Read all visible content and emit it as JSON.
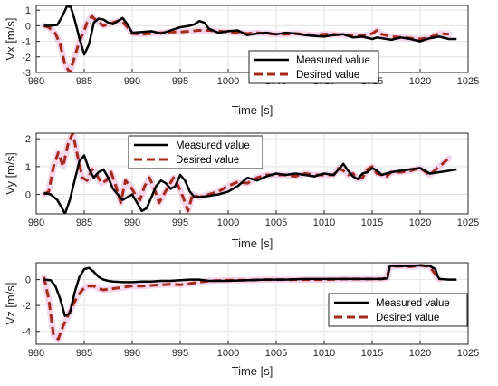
{
  "chart_data": [
    {
      "type": "line",
      "xlabel": "Time [s]",
      "ylabel": "Vx [m/s]",
      "xlim": [
        980,
        1025
      ],
      "ylim": [
        -3,
        1.3
      ],
      "xticks": [
        980,
        985,
        990,
        995,
        1000,
        1005,
        1010,
        1015,
        1020,
        1025
      ],
      "yticks": [
        -3,
        -2,
        -1,
        0,
        1
      ],
      "grid": true,
      "legend_position": "center-right",
      "series": [
        {
          "name": "Measured value",
          "color": "#000000",
          "style": "solid",
          "x": [
            980.8,
            981.5,
            982.2,
            982.8,
            983.2,
            983.6,
            984.0,
            984.5,
            985.0,
            985.5,
            986.0,
            986.5,
            987.0,
            987.5,
            988.0,
            988.5,
            989.0,
            989.5,
            990.0,
            991.0,
            992.0,
            993.0,
            994.0,
            995.0,
            996.0,
            996.5,
            997.0,
            997.5,
            998.0,
            999.0,
            1000.0,
            1001.0,
            1002.0,
            1003.0,
            1004.0,
            1005.0,
            1006.0,
            1007.0,
            1008.0,
            1009.0,
            1010.0,
            1011.0,
            1012.0,
            1013.0,
            1014.0,
            1015.0,
            1015.5,
            1016.0,
            1017.0,
            1018.0,
            1019.0,
            1020.0,
            1021.0,
            1022.0,
            1023.0,
            1023.8
          ],
          "y": [
            0.0,
            0.0,
            0.05,
            0.7,
            1.25,
            1.2,
            0.4,
            -0.8,
            -1.85,
            -1.2,
            0.2,
            0.45,
            0.4,
            0.2,
            0.1,
            0.3,
            0.5,
            0.1,
            -0.45,
            -0.4,
            -0.35,
            -0.5,
            -0.3,
            -0.1,
            0.0,
            0.1,
            0.3,
            0.2,
            -0.2,
            -0.45,
            -0.35,
            -0.3,
            -0.6,
            -0.5,
            -0.45,
            -0.55,
            -0.45,
            -0.5,
            -0.6,
            -0.65,
            -0.7,
            -0.6,
            -0.55,
            -0.75,
            -0.7,
            -0.85,
            -0.75,
            -0.8,
            -0.9,
            -0.75,
            -0.85,
            -1.0,
            -0.8,
            -0.7,
            -0.85,
            -0.85
          ]
        },
        {
          "name": "Desired value",
          "color": "#a52a1a",
          "style": "dashed",
          "x": [
            980.8,
            981.3,
            982.0,
            982.5,
            983.0,
            983.5,
            984.0,
            984.5,
            985.0,
            985.3,
            985.8,
            986.3,
            987.0,
            987.5,
            988.0,
            988.5,
            989.0,
            989.5,
            990.0,
            991.0,
            992.0,
            993.0,
            994.0,
            995.0,
            996.0,
            997.0,
            998.0,
            999.0,
            1000.0,
            1001.0,
            1002.0,
            1003.0,
            1004.0,
            1005.0,
            1006.0,
            1007.0,
            1008.0,
            1009.0,
            1010.0,
            1011.0,
            1012.0,
            1013.0,
            1014.0,
            1015.0,
            1015.5,
            1016.0,
            1017.0,
            1018.0,
            1019.0,
            1020.0,
            1021.0,
            1022.0,
            1023.0
          ],
          "y": [
            0.0,
            -0.1,
            -0.5,
            -1.2,
            -2.5,
            -3.0,
            -2.0,
            -1.0,
            -0.3,
            0.2,
            0.6,
            0.3,
            0.0,
            0.1,
            0.2,
            0.3,
            0.25,
            -0.1,
            -0.5,
            -0.55,
            -0.5,
            -0.45,
            -0.4,
            -0.4,
            -0.35,
            -0.3,
            -0.3,
            -0.35,
            -0.4,
            -0.45,
            -0.5,
            -0.45,
            -0.5,
            -0.55,
            -0.55,
            -0.5,
            -0.55,
            -0.6,
            -0.55,
            -0.55,
            -0.6,
            -0.6,
            -0.65,
            -0.5,
            -0.3,
            -0.55,
            -0.7,
            -0.75,
            -0.8,
            -0.85,
            -0.75,
            -0.5,
            -0.55
          ]
        }
      ]
    },
    {
      "type": "line",
      "xlabel": "Time [s]",
      "ylabel": "Vy [m/s]",
      "xlim": [
        980,
        1025
      ],
      "ylim": [
        -0.7,
        2.2
      ],
      "xticks": [
        980,
        985,
        990,
        995,
        1000,
        1005,
        1010,
        1015,
        1020,
        1025
      ],
      "yticks": [
        0,
        1,
        2
      ],
      "grid": true,
      "legend_position": "top-left",
      "series": [
        {
          "name": "Measured value",
          "color": "#000000",
          "style": "solid",
          "x": [
            980.8,
            981.5,
            982.2,
            982.7,
            983.0,
            983.5,
            984.0,
            984.5,
            985.0,
            985.5,
            986.0,
            986.5,
            987.0,
            987.5,
            988.0,
            988.5,
            989.0,
            989.5,
            990.0,
            990.5,
            991.0,
            991.5,
            992.0,
            992.5,
            993.0,
            993.5,
            994.0,
            994.5,
            995.0,
            995.5,
            996.0,
            996.5,
            997.0,
            998.0,
            999.0,
            1000.0,
            1001.0,
            1002.0,
            1003.0,
            1004.0,
            1005.0,
            1006.0,
            1007.0,
            1008.0,
            1009.0,
            1010.0,
            1011.0,
            1011.5,
            1012.0,
            1012.5,
            1013.0,
            1013.5,
            1014.0,
            1014.5,
            1015.0,
            1015.5,
            1016.0,
            1017.0,
            1018.0,
            1019.0,
            1020.0,
            1021.0,
            1022.0,
            1023.0,
            1023.8
          ],
          "y": [
            0.05,
            0.0,
            -0.2,
            -0.5,
            -0.7,
            -0.2,
            0.5,
            1.2,
            1.4,
            0.9,
            0.6,
            0.8,
            0.9,
            0.6,
            0.2,
            0.0,
            -0.2,
            -0.1,
            0.0,
            -0.3,
            -0.6,
            -0.5,
            -0.1,
            0.3,
            0.5,
            0.4,
            0.2,
            0.3,
            0.7,
            0.5,
            0.1,
            -0.1,
            -0.1,
            -0.05,
            0.0,
            0.1,
            0.3,
            0.6,
            0.5,
            0.65,
            0.75,
            0.7,
            0.75,
            0.7,
            0.65,
            0.75,
            0.7,
            0.9,
            1.1,
            0.85,
            0.65,
            0.55,
            0.75,
            0.8,
            0.95,
            0.85,
            0.7,
            0.8,
            0.85,
            0.9,
            0.95,
            0.75,
            0.8,
            0.85,
            0.9
          ]
        },
        {
          "name": "Desired value",
          "color": "#a52a1a",
          "style": "dashed",
          "x": [
            980.8,
            981.3,
            981.8,
            982.3,
            982.8,
            983.3,
            983.8,
            984.3,
            984.8,
            985.3,
            985.8,
            986.3,
            986.8,
            987.3,
            987.8,
            988.3,
            988.8,
            989.3,
            989.8,
            990.3,
            990.8,
            991.3,
            991.8,
            992.3,
            992.8,
            993.3,
            993.8,
            994.3,
            994.8,
            995.3,
            995.8,
            996.3,
            997.0,
            998.0,
            999.0,
            1000.0,
            1001.0,
            1002.0,
            1003.0,
            1004.0,
            1005.0,
            1006.0,
            1007.0,
            1008.0,
            1009.0,
            1010.0,
            1011.0,
            1011.5,
            1012.0,
            1012.5,
            1013.0,
            1013.5,
            1014.0,
            1014.5,
            1015.0,
            1015.5,
            1016.0,
            1016.5,
            1017.0,
            1018.0,
            1019.0,
            1020.0,
            1021.0,
            1022.0,
            1023.0
          ],
          "y": [
            0.0,
            0.1,
            1.0,
            1.5,
            1.0,
            1.8,
            2.2,
            1.4,
            0.6,
            0.5,
            0.9,
            0.7,
            0.4,
            0.5,
            0.8,
            0.3,
            -0.3,
            0.5,
            0.3,
            0.0,
            -0.2,
            0.3,
            0.6,
            0.2,
            -0.3,
            0.0,
            0.3,
            0.6,
            0.3,
            -0.1,
            -0.6,
            0.0,
            -0.1,
            0.0,
            0.1,
            0.3,
            0.45,
            0.4,
            0.6,
            0.7,
            0.7,
            0.7,
            0.65,
            0.75,
            0.7,
            0.7,
            0.7,
            0.95,
            0.85,
            0.7,
            0.75,
            0.55,
            0.6,
            0.9,
            1.0,
            0.75,
            0.7,
            0.65,
            0.8,
            0.8,
            0.85,
            0.95,
            0.7,
            1.0,
            1.3
          ]
        }
      ]
    },
    {
      "type": "line",
      "xlabel": "Time [s]",
      "ylabel": "Vz [m/s]",
      "xlim": [
        980,
        1025
      ],
      "ylim": [
        -5,
        1.3
      ],
      "xticks": [
        980,
        985,
        990,
        995,
        1000,
        1005,
        1010,
        1015,
        1020,
        1025
      ],
      "yticks": [
        -4,
        -2,
        0
      ],
      "grid": true,
      "legend_position": "bottom-right",
      "series": [
        {
          "name": "Measured value",
          "color": "#000000",
          "style": "solid",
          "x": [
            980.8,
            981.5,
            982.0,
            982.5,
            983.0,
            983.5,
            984.0,
            984.5,
            985.0,
            985.5,
            986.0,
            986.5,
            987.0,
            987.5,
            988.0,
            989.0,
            990.0,
            991.0,
            992.0,
            993.0,
            994.0,
            995.0,
            996.0,
            997.0,
            998.0,
            999.0,
            1000.0,
            1002.0,
            1004.0,
            1006.0,
            1008.0,
            1010.0,
            1012.0,
            1014.0,
            1016.0,
            1016.6,
            1016.8,
            1017.0,
            1018.0,
            1019.0,
            1020.0,
            1021.0,
            1021.6,
            1021.8,
            1022.0,
            1023.0,
            1023.8
          ],
          "y": [
            0.0,
            -0.05,
            -0.5,
            -1.5,
            -2.8,
            -2.6,
            -1.0,
            0.2,
            0.8,
            0.9,
            0.6,
            0.2,
            0.0,
            -0.1,
            -0.15,
            -0.2,
            -0.2,
            -0.15,
            -0.15,
            -0.1,
            -0.1,
            -0.05,
            0.0,
            0.0,
            -0.1,
            -0.1,
            -0.1,
            -0.05,
            0.0,
            0.0,
            0.05,
            0.05,
            0.05,
            0.05,
            0.05,
            0.1,
            1.0,
            1.05,
            1.05,
            1.05,
            1.1,
            1.05,
            0.8,
            0.3,
            0.05,
            0.0,
            0.0
          ]
        },
        {
          "name": "Desired value",
          "color": "#a52a1a",
          "style": "dashed",
          "x": [
            980.8,
            981.3,
            981.8,
            982.3,
            982.8,
            983.3,
            983.8,
            984.3,
            984.8,
            985.3,
            986.0,
            986.5,
            987.0,
            988.0,
            989.0,
            990.0,
            991.0,
            992.0,
            993.0,
            994.0,
            995.0,
            996.0,
            997.0,
            998.0,
            1000.0,
            1002.0,
            1004.0,
            1006.0,
            1008.0,
            1010.0,
            1012.0,
            1014.0,
            1016.0,
            1016.5,
            1016.8,
            1017.0,
            1018.0,
            1019.0,
            1020.0,
            1021.0,
            1021.5,
            1022.0
          ],
          "y": [
            0.2,
            -1.5,
            -4.3,
            -4.6,
            -3.6,
            -2.8,
            -2.0,
            -1.3,
            -0.8,
            -0.5,
            -0.5,
            -0.7,
            -0.8,
            -0.7,
            -0.6,
            -0.5,
            -0.5,
            -0.45,
            -0.4,
            -0.35,
            -0.4,
            -0.3,
            -0.2,
            -0.1,
            -0.05,
            -0.05,
            0.0,
            0.0,
            0.0,
            0.0,
            0.05,
            0.05,
            0.05,
            0.1,
            0.9,
            1.0,
            1.05,
            1.0,
            1.1,
            1.0,
            0.5,
            0.0
          ]
        }
      ]
    }
  ]
}
